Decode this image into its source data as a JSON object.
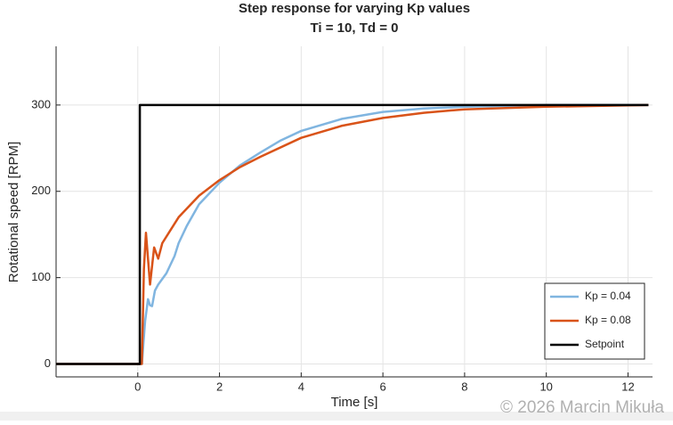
{
  "chart_data": {
    "type": "line",
    "title": "Step response for varying Kp values",
    "subtitle": "Ti = 10, Td = 0",
    "x_label": "Time [s]",
    "y_label": "Rotational speed [RPM]",
    "watermark": "© 2026 Marcin Mikuła",
    "xlim": [
      -2,
      12.6
    ],
    "ylim": [
      -15,
      368
    ],
    "xticks": [
      0,
      2,
      4,
      6,
      8,
      10,
      12
    ],
    "yticks": [
      0,
      100,
      200,
      300
    ],
    "grid": true,
    "legend": "lower right",
    "series": [
      {
        "name": "Kp = 0.04",
        "color": "#80b5e0",
        "x": [
          -2,
          0.1,
          0.18,
          0.25,
          0.3,
          0.35,
          0.42,
          0.5,
          0.7,
          0.9,
          1,
          1.2,
          1.5,
          2,
          2.5,
          3,
          3.5,
          4,
          5,
          6,
          7,
          8,
          10,
          12.5
        ],
        "values": [
          0,
          0,
          50,
          75,
          68,
          67,
          85,
          92,
          105,
          125,
          140,
          160,
          185,
          210,
          230,
          245,
          259,
          270,
          284,
          292,
          296,
          298,
          300,
          300
        ]
      },
      {
        "name": "Kp = 0.08",
        "color": "#d95319",
        "x": [
          -2,
          0.1,
          0.15,
          0.2,
          0.3,
          0.4,
          0.5,
          0.6,
          0.8,
          1,
          1.5,
          2,
          2.5,
          3,
          4,
          5,
          6,
          7,
          8,
          10,
          12.5
        ],
        "values": [
          0,
          0,
          110,
          152,
          92,
          135,
          122,
          140,
          155,
          170,
          195,
          213,
          228,
          240,
          262,
          276,
          285,
          291,
          295,
          298,
          300
        ]
      },
      {
        "name": "Setpoint",
        "color": "#000000",
        "x": [
          -2,
          0.05,
          0.05,
          12.5
        ],
        "values": [
          0,
          0,
          300,
          300
        ]
      }
    ]
  }
}
